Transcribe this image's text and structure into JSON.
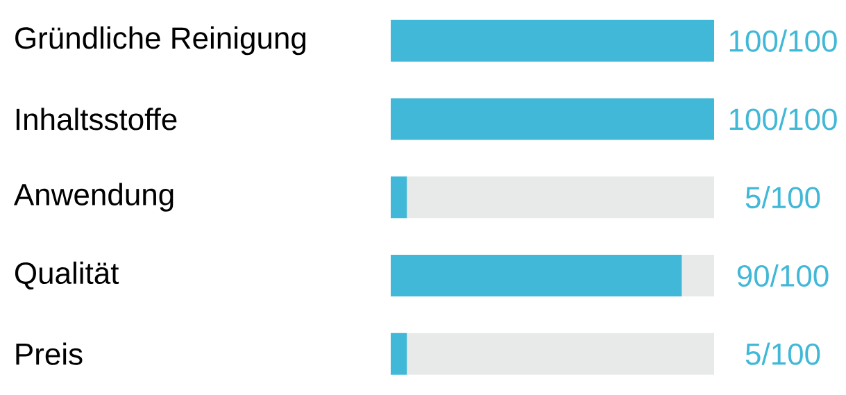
{
  "chart_data": {
    "type": "bar",
    "orientation": "horizontal",
    "stacked": true,
    "categories": [
      "Gründliche Reinigung",
      "Inhaltsstoffe",
      "Anwendung",
      "Qualität",
      "Preis"
    ],
    "series": [
      {
        "values": [
          100,
          100,
          5,
          90,
          5
        ],
        "color": "#41b8d7",
        "value_labels": [
          "100/100",
          "100/100",
          "5/100",
          "90/100",
          "5/100"
        ]
      },
      {
        "values": [
          0,
          0,
          95,
          10,
          95
        ],
        "color": "#e8eaea"
      }
    ],
    "xlim": [
      0,
      100
    ],
    "tick_labels": "y"
  }
}
